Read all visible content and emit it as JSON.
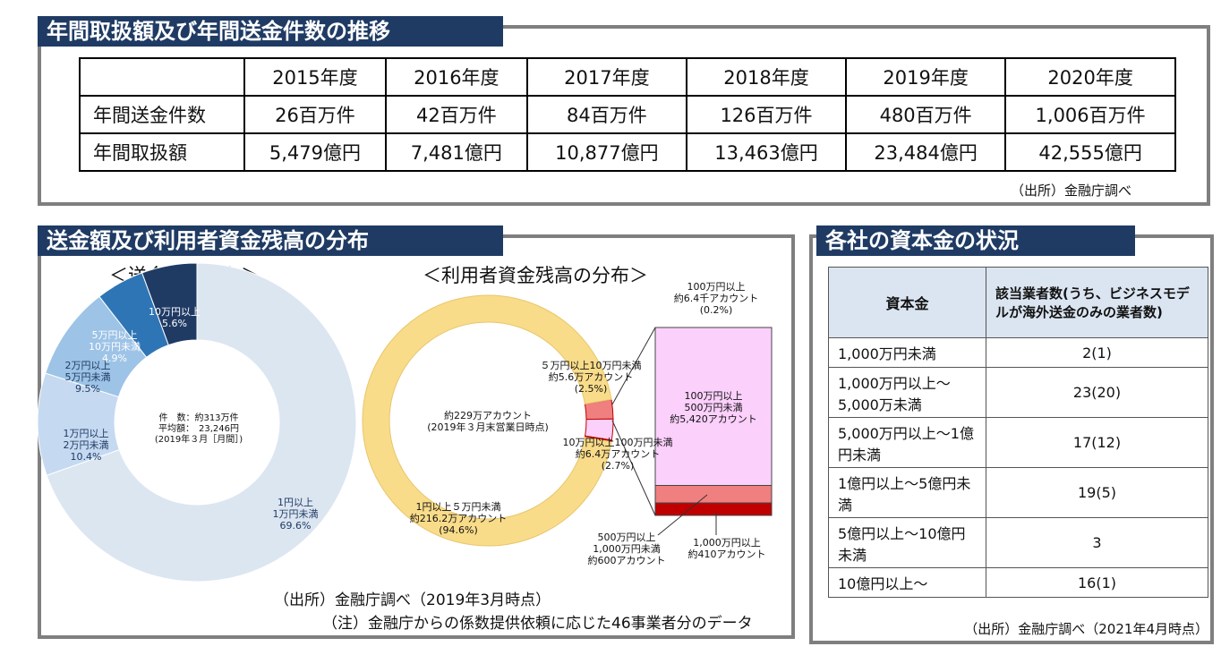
{
  "top": {
    "title": "年間取扱額及び年間送金件数の推移",
    "headers": [
      "",
      "2015年度",
      "2016年度",
      "2017年度",
      "2018年度",
      "2019年度",
      "2020年度"
    ],
    "rows": [
      {
        "label": "年間送金件数",
        "cells": [
          "26百万件",
          "42百万件",
          "84百万件",
          "126百万件",
          "480百万件",
          "1,006百万件"
        ]
      },
      {
        "label": "年間取扱額",
        "cells": [
          "5,479億円",
          "7,481億円",
          "10,877億円",
          "13,463億円",
          "23,484億円",
          "42,555億円"
        ]
      }
    ],
    "source": "（出所）金融庁調べ"
  },
  "mid": {
    "title": "送金額及び利用者資金残高の分布",
    "sub1": "＜送金額の分布＞",
    "sub2": "＜利用者資金残高の分布＞",
    "source": "（出所）金融庁調べ（2019年3月時点）",
    "note": "（注）金融庁からの係数提供依頼に応じた46事業者分のデータ"
  },
  "right": {
    "title": "各社の資本金の状況",
    "headers": [
      "資本金",
      "該当業者数(うち、ビジネスモデルが海外送金のみの業者数)"
    ],
    "rows": [
      [
        "1,000万円未満",
        "2(1)"
      ],
      [
        "1,000万円以上～5,000万未満",
        "23(20)"
      ],
      [
        "5,000万円以上～1億円未満",
        "17(12)"
      ],
      [
        "1億円以上～5億円未満",
        "19(5)"
      ],
      [
        "5億円以上～10億円未満",
        "3"
      ],
      [
        "10億円以上～",
        "16(1)"
      ]
    ],
    "source": "（出所）金融庁調べ（2021年4月時点）"
  },
  "chart_data": [
    {
      "type": "pie",
      "subtitle": "＜送金額の分布＞",
      "center_label": [
        "件　数：約313万件",
        "平均額：　23,246円",
        "(2019年３月［月間］)"
      ],
      "slices": [
        {
          "label": [
            "1円以上",
            "1万円未満"
          ],
          "value": 69.6,
          "pct": "69.6%",
          "color": "#dce6f1"
        },
        {
          "label": [
            "1万円以上",
            "2万円未満"
          ],
          "value": 10.4,
          "pct": "10.4%",
          "color": "#c5d9f1"
        },
        {
          "label": [
            "2万円以上",
            "5万円未満"
          ],
          "value": 9.5,
          "pct": "9.5%",
          "color": "#9dc3e6"
        },
        {
          "label": [
            "5万円以上",
            "10万円未満"
          ],
          "value": 4.9,
          "pct": "4.9%",
          "color": "#2e75b6"
        },
        {
          "label": [
            "10万円以上"
          ],
          "value": 5.6,
          "pct": "5.6%",
          "color": "#1f3b64"
        }
      ]
    },
    {
      "type": "pie",
      "subtitle": "＜利用者資金残高の分布＞",
      "center_label": [
        "約229万アカウント",
        "(2019年３月末営業日時点)"
      ],
      "slices": [
        {
          "label": [
            "1円以上５万円未満",
            "約216.2万アカウント"
          ],
          "value": 94.6,
          "pct": "(94.6%)",
          "color": "#f9dc8a"
        },
        {
          "label": [
            "10万円以上100万円未満",
            "約6.4万アカウント"
          ],
          "value": 2.7,
          "pct": "(2.7%)",
          "color": "#fbd0fb"
        },
        {
          "label": [
            "５万円以上10万円未満",
            "約5.6万アカウント"
          ],
          "value": 2.5,
          "pct": "(2.5%)",
          "color": "#f07f7f"
        },
        {
          "label": [
            "100万円以上",
            "約6.4千アカウント"
          ],
          "value": 0.2,
          "pct": "(0.2%)",
          "color": "#c00000"
        }
      ],
      "breakdown": [
        {
          "label": [
            "100万円以上",
            "500万円未満",
            "約5,420アカウント"
          ],
          "value": 5420,
          "color": "#fbd0fb"
        },
        {
          "label": [
            "500万円以上",
            "1,000万円未満",
            "約600アカウント"
          ],
          "value": 600,
          "color": "#f07f7f"
        },
        {
          "label": [
            "1,000万円以上",
            "約410アカウント"
          ],
          "value": 410,
          "color": "#c00000"
        }
      ]
    }
  ]
}
